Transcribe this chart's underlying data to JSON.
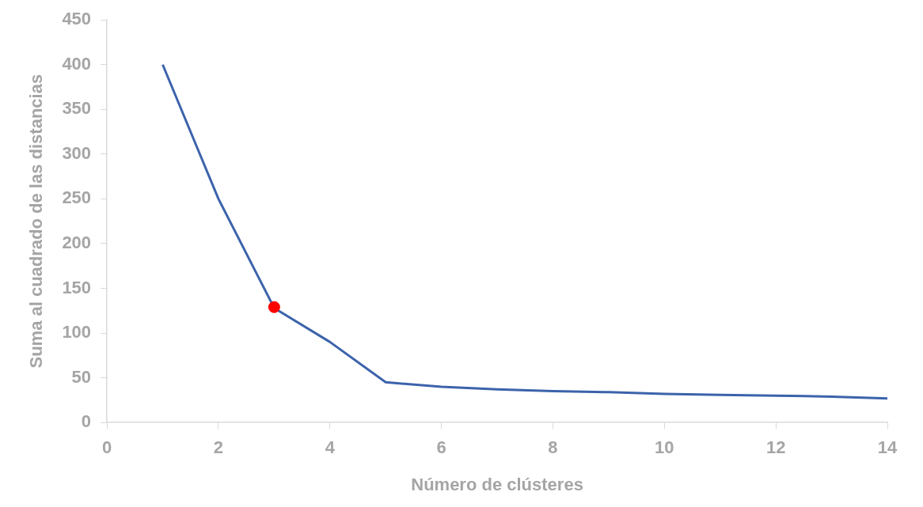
{
  "chart_data": {
    "type": "line",
    "xlabel": "Número de clústeres",
    "ylabel": "Suma al cuadrado de las distancias",
    "xlim": [
      0,
      14
    ],
    "xticks": [
      0,
      2,
      4,
      6,
      8,
      10,
      12,
      14
    ],
    "ylim": [
      0,
      450
    ],
    "yticks": [
      0,
      50,
      100,
      150,
      200,
      250,
      300,
      350,
      400,
      450
    ],
    "grid": false,
    "legend": false,
    "series": [
      {
        "color": "#3c63ab",
        "marker": "none",
        "x": [
          1,
          2,
          3,
          4,
          5,
          6,
          7,
          8,
          9,
          10,
          11,
          12,
          13,
          14
        ],
        "values": [
          400,
          250,
          128,
          90,
          45,
          40,
          37,
          35,
          34,
          32,
          31,
          30,
          29,
          27
        ]
      },
      {
        "type": "scatter",
        "color": "#ff0000",
        "marker": "circle",
        "x": [
          3
        ],
        "values": [
          129
        ]
      }
    ]
  }
}
